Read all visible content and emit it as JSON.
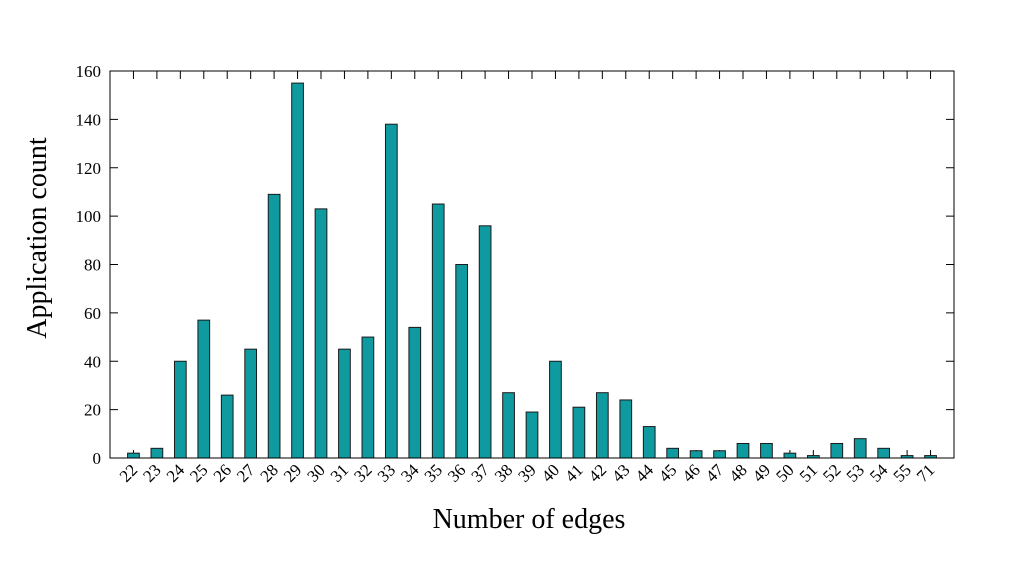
{
  "chart_data": {
    "type": "bar",
    "xlabel": "Number of edges",
    "ylabel": "Application count",
    "ylim": [
      0,
      160
    ],
    "yticks": [
      0,
      20,
      40,
      60,
      80,
      100,
      120,
      140,
      160
    ],
    "grid": false,
    "colors": {
      "bar": "#0f9aa0",
      "edge": "#1a1a1a"
    },
    "categories": [
      "22",
      "23",
      "24",
      "25",
      "26",
      "27",
      "28",
      "29",
      "30",
      "31",
      "32",
      "33",
      "34",
      "35",
      "36",
      "37",
      "38",
      "39",
      "40",
      "41",
      "42",
      "43",
      "44",
      "45",
      "46",
      "47",
      "48",
      "49",
      "50",
      "51",
      "52",
      "53",
      "54",
      "55",
      "71"
    ],
    "values": [
      2,
      4,
      40,
      57,
      26,
      45,
      109,
      155,
      103,
      45,
      50,
      138,
      54,
      105,
      80,
      96,
      27,
      19,
      40,
      21,
      27,
      24,
      13,
      4,
      3,
      3,
      6,
      6,
      2,
      1,
      6,
      8,
      4,
      1,
      1
    ]
  }
}
